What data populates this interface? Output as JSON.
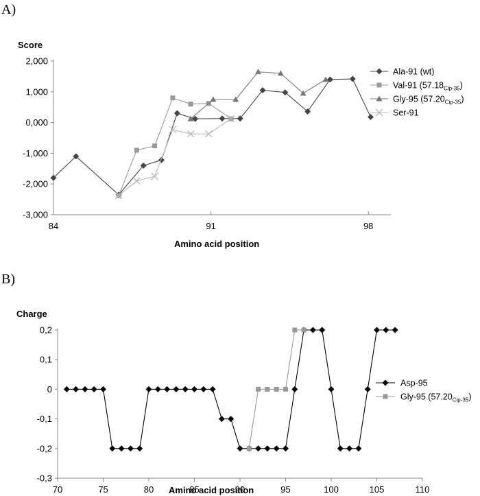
{
  "chart_data": [
    {
      "type": "line",
      "panel_label": "A)",
      "ylabel": "Score",
      "xlabel": "Amino acid position",
      "xlim": [
        84,
        99
      ],
      "ylim": [
        -3000,
        2000
      ],
      "x_ticks": [
        84,
        91,
        98
      ],
      "x_tick_labels": [
        "84",
        "91",
        "98"
      ],
      "y_ticks": [
        2000,
        1000,
        0,
        -1000,
        -2000,
        -3000
      ],
      "y_tick_labels": [
        "2,000",
        "1,000",
        "0,000",
        "-1,000",
        "-2,000",
        "-3,000"
      ],
      "legend_position": "right",
      "series": [
        {
          "name": "Ala-91 (wt)",
          "legend_main": "Ala-91 (wt)",
          "legend_sub": "",
          "legend_after": "",
          "color": "#444444",
          "marker": "diamond",
          "x": [
            84,
            85,
            86.9,
            88,
            88.8,
            89.5,
            90.3,
            91.5,
            92.3,
            93.3,
            94.3,
            95.3,
            96.3,
            97.3,
            98.1
          ],
          "values": [
            -1800,
            -1100,
            -2350,
            -1400,
            -1220,
            300,
            120,
            130,
            130,
            1050,
            980,
            360,
            1400,
            1420,
            180
          ]
        },
        {
          "name": "Val-91 (57.18Cip-35)",
          "legend_main": "Val-91 (57.18",
          "legend_sub": "Cip-35",
          "legend_after": ")",
          "color": "#999999",
          "marker": "square",
          "x": [
            86.9,
            87.7,
            88.5,
            89.3,
            90.1,
            90.9,
            91.9
          ],
          "values": [
            -2380,
            -900,
            -760,
            800,
            600,
            620,
            120
          ]
        },
        {
          "name": "Gly-95 (57.20Cip-35)",
          "legend_main": "Gly-95 (57.20",
          "legend_sub": "Cip-35",
          "legend_after": ")",
          "color": "#777777",
          "marker": "triangle",
          "x": [
            90.1,
            91.1,
            92.1,
            93.1,
            94.1,
            95.1,
            96.1
          ],
          "values": [
            120,
            750,
            750,
            1650,
            1600,
            950,
            1400
          ]
        },
        {
          "name": "Ser-91",
          "legend_main": "Ser-91",
          "legend_sub": "",
          "legend_after": "",
          "color": "#b8b8b8",
          "marker": "x",
          "x": [
            86.9,
            87.7,
            88.5,
            89.3,
            90.1,
            90.9,
            91.9
          ],
          "values": [
            -2380,
            -1900,
            -1750,
            -230,
            -370,
            -370,
            130
          ]
        }
      ]
    },
    {
      "type": "line",
      "panel_label": "B)",
      "ylabel": "Charge",
      "xlabel": "Amino acid position",
      "xlim": [
        70,
        110
      ],
      "ylim": [
        -0.3,
        0.2
      ],
      "x_ticks": [
        70,
        75,
        80,
        85,
        90,
        95,
        100,
        105,
        110
      ],
      "x_tick_labels": [
        "70",
        "75",
        "80",
        "85",
        "90",
        "95",
        "100",
        "105",
        "110"
      ],
      "y_ticks": [
        0.2,
        0.1,
        0,
        -0.1,
        -0.2,
        -0.3
      ],
      "y_tick_labels": [
        "0,2",
        "0,1",
        "0",
        "-0,1",
        "-0,2",
        "-0,3"
      ],
      "legend_position": "right",
      "series": [
        {
          "name": "Asp-95",
          "legend_main": "Asp-95",
          "legend_sub": "",
          "legend_after": "",
          "color": "#000000",
          "marker": "diamond",
          "x": [
            71,
            72,
            73,
            74,
            75,
            76,
            77,
            78,
            79,
            80,
            81,
            82,
            83,
            84,
            85,
            86,
            87,
            88,
            89,
            90,
            91,
            92,
            93,
            94,
            95,
            96,
            97,
            98,
            99,
            100,
            101,
            102,
            103,
            104,
            105,
            106,
            107
          ],
          "values": [
            0,
            0,
            0,
            0,
            0,
            -0.2,
            -0.2,
            -0.2,
            -0.2,
            0,
            0,
            0,
            0,
            0,
            0,
            0,
            0,
            -0.1,
            -0.1,
            -0.2,
            -0.2,
            -0.2,
            -0.2,
            -0.2,
            -0.2,
            0,
            0.2,
            0.2,
            0.2,
            0,
            -0.2,
            -0.2,
            -0.2,
            0,
            0.2,
            0.2,
            0.2
          ]
        },
        {
          "name": "Gly-95 (57.20Cip-35)",
          "legend_main": "Gly-95 (57.20",
          "legend_sub": "Cip-35",
          "legend_after": ")",
          "color": "#999999",
          "marker": "square",
          "x": [
            91,
            92,
            93,
            94,
            95,
            96,
            97
          ],
          "values": [
            -0.2,
            0,
            0,
            0,
            0,
            0.2,
            0.2
          ]
        }
      ]
    }
  ]
}
